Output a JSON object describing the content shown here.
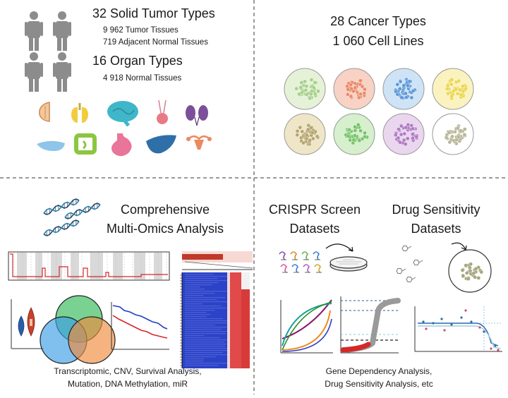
{
  "tissue": {
    "tumor_types": "32 Solid Tumor Types",
    "tumor_tissues": "9 962 Tumor Tissues",
    "adjacent_tissues": "719 Adjacent Normal Tissues",
    "organ_types": "16 Organ Types",
    "normal_tissues": "4 918 Normal Tissues"
  },
  "cells": {
    "cancer_types": "28 Cancer Types",
    "cell_lines": "1 060 Cell Lines"
  },
  "omics": {
    "title_line1": "Comprehensive",
    "title_line2": "Multi-Omics Analysis",
    "caption_line1": "Transcriptomic, CNV, Survival Analysis,",
    "caption_line2": "Mutation, DNA Methylation, miR"
  },
  "screens": {
    "crispr_line1": "CRISPR Screen",
    "crispr_line2": "Datasets",
    "drug_line1": "Drug Sensitivity",
    "drug_line2": "Datasets",
    "caption_line1": "Gene Dependency Analysis,",
    "caption_line2": "Drug Sensitivity Analysis, etc"
  },
  "colors": {
    "divider": "#7a7a7a",
    "person": "#8c8c8c",
    "dish_fills": [
      "#e6f2d8",
      "#f8d2c4",
      "#cfe3f6",
      "#fbf3bf",
      "#efe6c8",
      "#d6efcc",
      "#ead6ee",
      "#ffffff"
    ],
    "dish_cells": [
      "#a7d08a",
      "#ea8a6a",
      "#5d9ad8",
      "#ecd64f",
      "#b6a56e",
      "#77c46a",
      "#b07cc4",
      "#b7b79a"
    ]
  }
}
